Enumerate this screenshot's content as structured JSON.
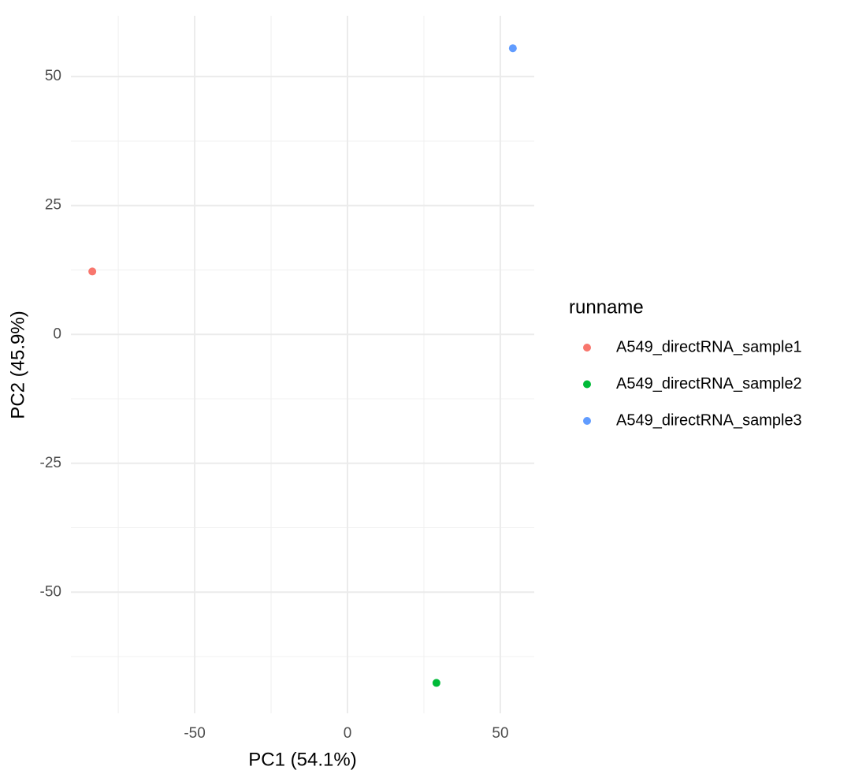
{
  "chart_data": {
    "type": "scatter",
    "xlabel": "PC1 (54.1%)",
    "ylabel": "PC2 (45.9%)",
    "legend_title": "runname",
    "legend_position": "right",
    "series": [
      {
        "name": "A549_directRNA_sample1",
        "color": "#F8766D",
        "x": [
          -83.5
        ],
        "y": [
          12.2
        ]
      },
      {
        "name": "A549_directRNA_sample2",
        "color": "#00BA38",
        "x": [
          29.1
        ],
        "y": [
          -67.6
        ]
      },
      {
        "name": "A549_directRNA_sample3",
        "color": "#619CFF",
        "x": [
          54.1
        ],
        "y": [
          55.5
        ]
      }
    ],
    "xlim": [
      -90.5,
      61.1
    ],
    "xticks": [
      -50,
      0,
      50
    ],
    "ylim": [
      -73.5,
      61.8
    ],
    "yticks": [
      -50,
      -25,
      0,
      25,
      50
    ],
    "grid": true
  }
}
